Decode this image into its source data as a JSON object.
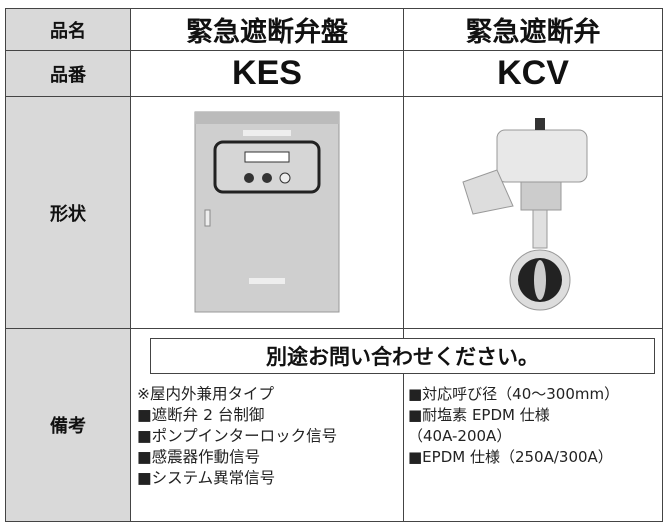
{
  "table": {
    "rows": [
      {
        "label": "品名",
        "cells": [
          "緊急遮断弁盤",
          "緊急遮断弁"
        ]
      },
      {
        "label": "品番",
        "cells": [
          "KES",
          "KCV"
        ]
      },
      {
        "label": "形状"
      },
      {
        "label": "備考",
        "notice": "別途お問い合わせください。",
        "notes": [
          [
            "※屋内外兼用タイプ",
            "■遮断弁 2 台制御",
            "■ポンプインターロック信号",
            "■感震器作動信号",
            "■システム異常信号"
          ],
          [
            "■対応呼び径（40～300mm）",
            "■耐塩素 EPDM 仕様",
            "（40A-200A）",
            "■EPDM 仕様（250A/300A）"
          ]
        ]
      }
    ]
  }
}
